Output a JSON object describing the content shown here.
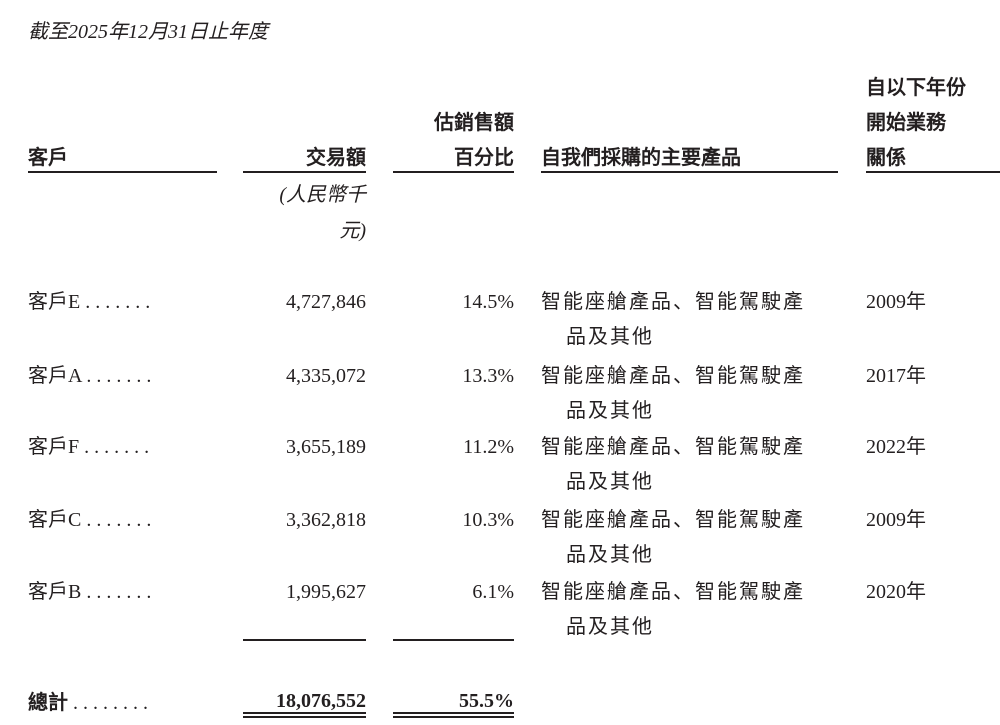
{
  "period": "截至2025年12月31日止年度",
  "headers": {
    "customer": "客戶",
    "amount": "交易額",
    "amount_unit_line1": "(人民幣千",
    "amount_unit_line2": "元)",
    "pct_line1": "估銷售額",
    "pct_line2": "百分比",
    "products": "自我們採購的主要產品",
    "since_line1": "自以下年份",
    "since_line2": "開始業務",
    "since_line3": "關係"
  },
  "rows": [
    {
      "customer": "客戶E . . . . . . .",
      "amount": "4,727,846",
      "pct": "14.5%",
      "products_line1": "智能座艙產品、智能駕駛產",
      "products_line2": "品及其他",
      "since": "2009年"
    },
    {
      "customer": "客戶A . . . . . . .",
      "amount": "4,335,072",
      "pct": "13.3%",
      "products_line1": "智能座艙產品、智能駕駛產",
      "products_line2": "品及其他",
      "since": "2017年"
    },
    {
      "customer": "客戶F . . . . . . .",
      "amount": "3,655,189",
      "pct": "11.2%",
      "products_line1": "智能座艙產品、智能駕駛產",
      "products_line2": "品及其他",
      "since": "2022年"
    },
    {
      "customer": "客戶C . . . . . . .",
      "amount": "3,362,818",
      "pct": "10.3%",
      "products_line1": "智能座艙產品、智能駕駛產",
      "products_line2": "品及其他",
      "since": "2009年"
    },
    {
      "customer": "客戶B . . . . . . .",
      "amount": "1,995,627",
      "pct": "6.1%",
      "products_line1": "智能座艙產品、智能駕駛產",
      "products_line2": "品及其他",
      "since": "2020年"
    }
  ],
  "total": {
    "label": "總計",
    "dots": ". . . . . . . .",
    "amount": "18,076,552",
    "pct": "55.5%"
  }
}
